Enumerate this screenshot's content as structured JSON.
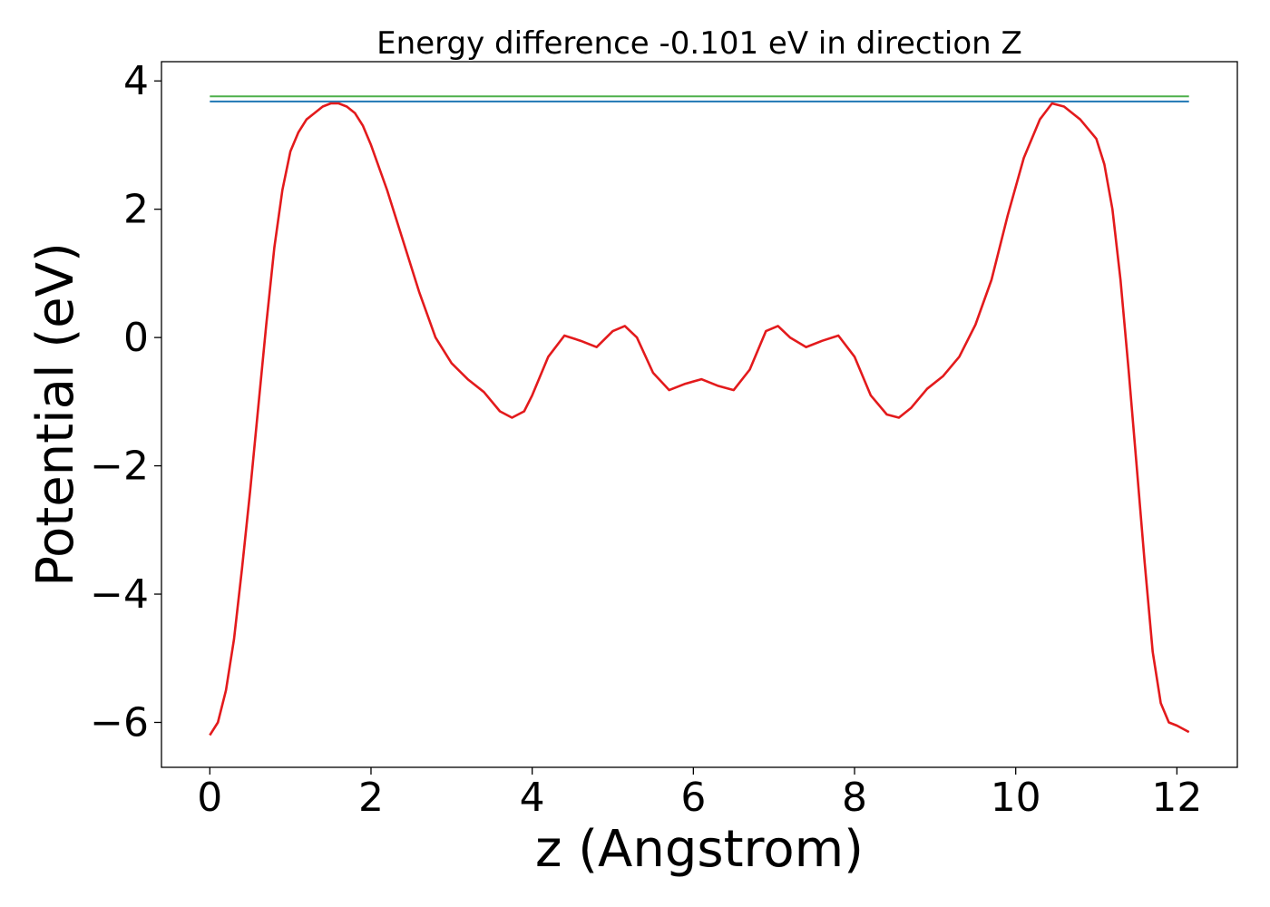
{
  "chart_data": {
    "type": "line",
    "title": "Energy difference -0.101 eV in direction Z",
    "xlabel": "z (Angstrom)",
    "ylabel": "Potential (eV)",
    "xlim": [
      -0.6,
      12.75
    ],
    "ylim": [
      -6.7,
      4.3
    ],
    "xticks": [
      0,
      2,
      4,
      6,
      8,
      10,
      12
    ],
    "xtick_labels": [
      "0",
      "2",
      "4",
      "6",
      "8",
      "10",
      "12"
    ],
    "yticks": [
      -6,
      -4,
      -2,
      0,
      2,
      4
    ],
    "ytick_labels": [
      "−6",
      "−4",
      "−2",
      "0",
      "2",
      "4"
    ],
    "grid": false,
    "series": [
      {
        "color": "#e31a1c",
        "x": [
          0,
          0.1,
          0.2,
          0.3,
          0.4,
          0.5,
          0.6,
          0.7,
          0.8,
          0.9,
          1.0,
          1.1,
          1.2,
          1.3,
          1.4,
          1.5,
          1.6,
          1.7,
          1.8,
          1.9,
          2.0,
          2.2,
          2.4,
          2.6,
          2.8,
          3.0,
          3.2,
          3.4,
          3.6,
          3.75,
          3.9,
          4.0,
          4.2,
          4.4,
          4.6,
          4.8,
          5.0,
          5.15,
          5.3,
          5.5,
          5.7,
          5.9,
          6.1,
          6.3,
          6.5,
          6.7,
          6.9,
          7.05,
          7.2,
          7.4,
          7.6,
          7.8,
          8.0,
          8.2,
          8.4,
          8.55,
          8.7,
          8.9,
          9.1,
          9.3,
          9.5,
          9.7,
          9.9,
          10.1,
          10.3,
          10.45,
          10.6,
          10.8,
          11.0,
          11.1,
          11.2,
          11.3,
          11.4,
          11.5,
          11.6,
          11.7,
          11.8,
          11.9,
          12.0,
          12.15
        ],
        "y": [
          -6.2,
          -6.0,
          -5.5,
          -4.7,
          -3.6,
          -2.4,
          -1.1,
          0.2,
          1.4,
          2.3,
          2.9,
          3.2,
          3.4,
          3.5,
          3.6,
          3.65,
          3.65,
          3.6,
          3.5,
          3.3,
          3.0,
          2.3,
          1.5,
          0.7,
          0.0,
          -0.4,
          -0.65,
          -0.85,
          -1.15,
          -1.25,
          -1.15,
          -0.9,
          -0.3,
          0.03,
          -0.05,
          -0.15,
          0.1,
          0.18,
          0.0,
          -0.55,
          -0.82,
          -0.72,
          -0.65,
          -0.75,
          -0.82,
          -0.5,
          0.1,
          0.18,
          0.0,
          -0.15,
          -0.05,
          0.03,
          -0.3,
          -0.9,
          -1.2,
          -1.25,
          -1.1,
          -0.8,
          -0.6,
          -0.3,
          0.2,
          0.9,
          1.9,
          2.8,
          3.4,
          3.65,
          3.6,
          3.4,
          3.1,
          2.7,
          2.0,
          0.9,
          -0.5,
          -2.0,
          -3.5,
          -4.9,
          -5.7,
          -6.0,
          -6.05,
          -6.15
        ]
      },
      {
        "color": "#1f77b4",
        "x": [
          0,
          12.15
        ],
        "y": [
          3.68,
          3.68
        ]
      },
      {
        "color": "#4daf4a",
        "x": [
          0,
          12.15
        ],
        "y": [
          3.76,
          3.76
        ]
      }
    ]
  }
}
